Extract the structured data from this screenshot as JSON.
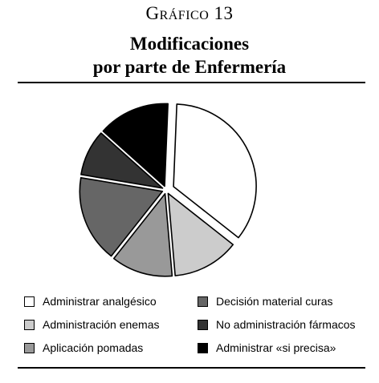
{
  "chart_data": {
    "type": "pie",
    "kicker": "Gráfico 13",
    "title_lines": [
      "Modificaciones",
      "por parte de Enfermería"
    ],
    "slices": [
      {
        "label": "Administrar analgésico",
        "value": 35,
        "color": "#ffffff",
        "exploded": true
      },
      {
        "label": "Administración enemas",
        "value": 13,
        "color": "#cccccc",
        "exploded": false
      },
      {
        "label": "Aplicación pomadas",
        "value": 12,
        "color": "#999999",
        "exploded": false
      },
      {
        "label": "Decisión material curas",
        "value": 17,
        "color": "#666666",
        "exploded": false
      },
      {
        "label": "No administración fármacos",
        "value": 9,
        "color": "#333333",
        "exploded": false
      },
      {
        "label": "Administrar «si precisa»",
        "value": 14,
        "color": "#000000",
        "exploded": false
      }
    ],
    "legend": {
      "columns": [
        [
          "Administrar analgésico",
          "Administración enemas",
          "Aplicación pomadas"
        ],
        [
          "Decisión material curas",
          "No administración fármacos",
          "Administrar «si precisa»"
        ]
      ]
    }
  }
}
